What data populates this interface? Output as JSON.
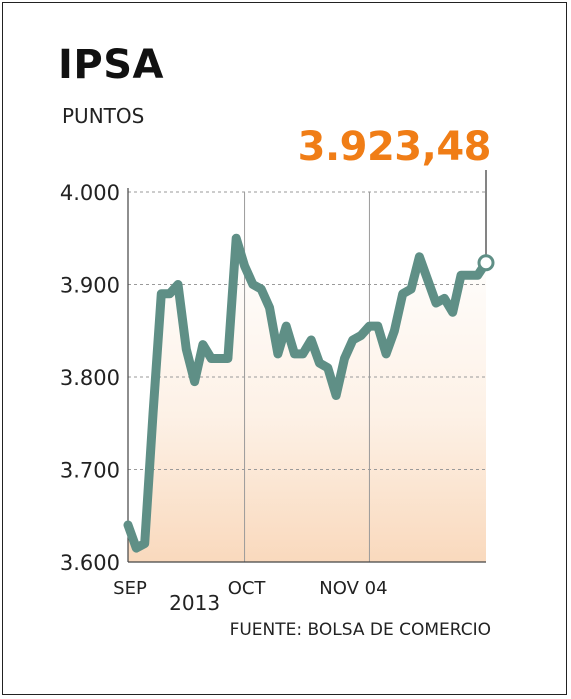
{
  "header": {
    "title": "IPSA",
    "subtitle": "PUNTOS",
    "current_value": "3.923,48",
    "source": "FUENTE: BOLSA DE COMERCIO"
  },
  "colors": {
    "line": "#5f8f86",
    "highlight": "#f07d16",
    "grid": "#9a9a9a"
  },
  "chart_data": {
    "type": "line",
    "title": "IPSA",
    "ylabel": "PUNTOS",
    "ylim": [
      3600,
      4000
    ],
    "y_ticks": [
      {
        "value": 4000,
        "label": "4.000"
      },
      {
        "value": 3900,
        "label": "3.900"
      },
      {
        "value": 3800,
        "label": "3.800"
      },
      {
        "value": 3700,
        "label": "3.700"
      },
      {
        "value": 3600,
        "label": "3.600"
      }
    ],
    "x_ticks": [
      {
        "index": 0,
        "label": "SEP"
      },
      {
        "index": 14,
        "label": "OCT"
      },
      {
        "index": 29,
        "label": "NOV 04"
      }
    ],
    "year_label": "2013",
    "gridlines": true,
    "series": [
      {
        "values": [
          3640,
          3615,
          3620,
          3760,
          3890,
          3890,
          3900,
          3830,
          3795,
          3835,
          3820,
          3820,
          3820,
          3950,
          3920,
          3900,
          3895,
          3875,
          3825,
          3855,
          3825,
          3825,
          3840,
          3815,
          3810,
          3780,
          3820,
          3840,
          3845,
          3855,
          3855,
          3825,
          3850,
          3890,
          3895,
          3930,
          3905,
          3880,
          3885,
          3870,
          3910,
          3910,
          3910,
          3923.48
        ]
      }
    ]
  }
}
